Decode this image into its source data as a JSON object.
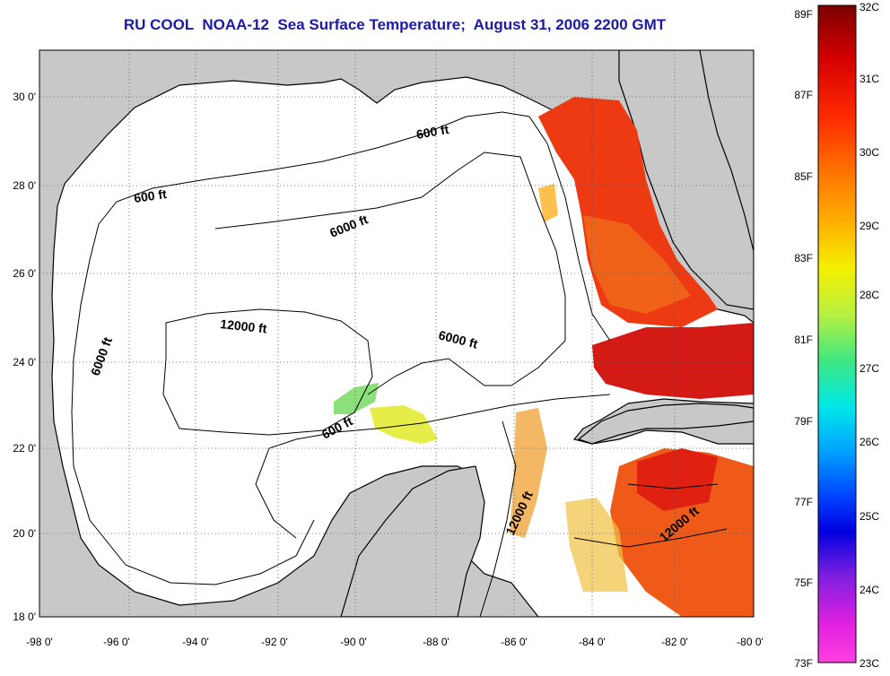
{
  "title": "RU COOL  NOAA-12  Sea Surface Temperature;  August 31, 2006 2200 GMT",
  "axes": {
    "x_ticks": [
      "-98 0'",
      "-96 0'",
      "-94 0'",
      "-92 0'",
      "-90 0'",
      "-88 0'",
      "-86 0'",
      "-84 0'",
      "-82 0'",
      "-80 0'"
    ],
    "y_ticks": [
      "30 0'",
      "28 0'",
      "26 0'",
      "24 0'",
      "22 0'",
      "20 0'",
      "18 0'"
    ]
  },
  "contour_labels": [
    "600 ft",
    "600 ft",
    "6000 ft",
    "12000 ft",
    "6000 ft",
    "6000 ft",
    "600 ft",
    "12000 ft",
    "12000 ft"
  ],
  "colorbar": {
    "fahrenheit": [
      "89F",
      "87F",
      "85F",
      "83F",
      "81F",
      "79F",
      "77F",
      "75F",
      "73F"
    ],
    "celsius": [
      "32C",
      "31C",
      "30C",
      "29C",
      "28C",
      "27C",
      "26C",
      "25C",
      "24C",
      "23C"
    ]
  },
  "colors": {
    "title": "#1a1aa6",
    "land": "#c8c8c8",
    "water": "#ffffff",
    "warm": "#e8201c",
    "hot": "#c41212"
  }
}
